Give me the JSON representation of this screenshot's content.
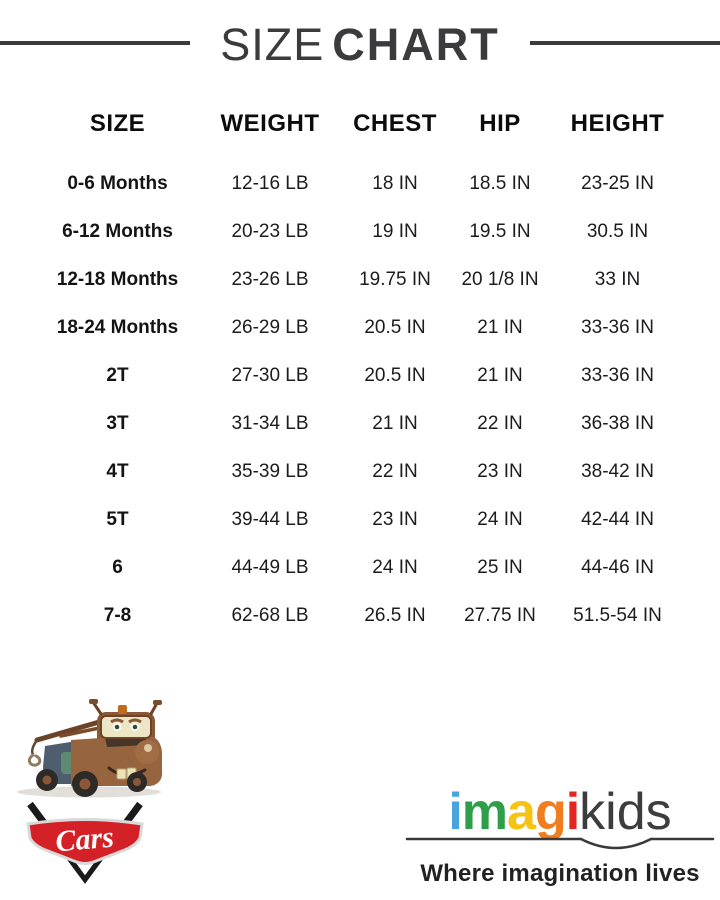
{
  "title": {
    "light": "SIZE",
    "bold": "CHART"
  },
  "table": {
    "headers": [
      "SIZE",
      "WEIGHT",
      "CHEST",
      "HIP",
      "HEIGHT"
    ],
    "rows": [
      [
        "0-6 Months",
        "12-16 LB",
        "18 IN",
        "18.5 IN",
        "23-25 IN"
      ],
      [
        "6-12 Months",
        "20-23 LB",
        "19 IN",
        "19.5 IN",
        "30.5 IN"
      ],
      [
        "12-18 Months",
        "23-26 LB",
        "19.75 IN",
        "20 1/8 IN",
        "33 IN"
      ],
      [
        "18-24 Months",
        "26-29 LB",
        "20.5 IN",
        "21 IN",
        "33-36 IN"
      ],
      [
        "2T",
        "27-30 LB",
        "20.5 IN",
        "21 IN",
        "33-36 IN"
      ],
      [
        "3T",
        "31-34 LB",
        "21 IN",
        "22 IN",
        "36-38 IN"
      ],
      [
        "4T",
        "35-39 LB",
        "22 IN",
        "23 IN",
        "38-42 IN"
      ],
      [
        "5T",
        "39-44 LB",
        "23 IN",
        "24 IN",
        "42-44 IN"
      ],
      [
        "6",
        "44-49 LB",
        "24 IN",
        "25 IN",
        "44-46 IN"
      ],
      [
        "7-8",
        "62-68 LB",
        "26.5 IN",
        "27.75 IN",
        "51.5-54 IN"
      ]
    ]
  },
  "branding": {
    "cars_text": "Cars",
    "cars_badge_color": "#d42127",
    "imagikids": {
      "letters": [
        {
          "char": "i",
          "color": "#4aa3df"
        },
        {
          "char": "m",
          "color": "#2f9e49"
        },
        {
          "char": "a",
          "color": "#f6c410"
        },
        {
          "char": "g",
          "color": "#f07d1f"
        },
        {
          "char": "i",
          "color": "#e52620"
        }
      ],
      "suffix": "kids",
      "tagline": "Where imagination lives"
    }
  }
}
